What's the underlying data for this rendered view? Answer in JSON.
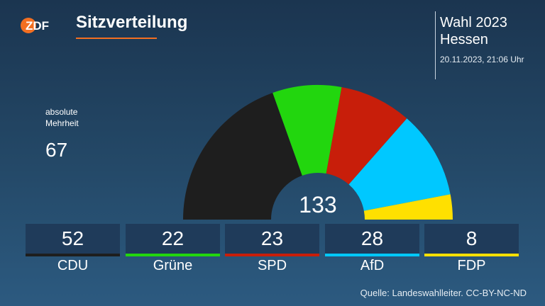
{
  "header": {
    "title": "Sitzverteilung",
    "election_line1": "Wahl 2023",
    "election_line2": "Hessen",
    "timestamp": "20.11.2023, 21:06 Uhr"
  },
  "majority": {
    "label_line1": "absolute",
    "label_line2": "Mehrheit",
    "value": "67"
  },
  "chart_data": {
    "type": "parliament-semicircle",
    "title": "Sitzverteilung",
    "total": 133,
    "parties": [
      {
        "name": "CDU",
        "seats": 52,
        "color": "#1e1e1e"
      },
      {
        "name": "Grüne",
        "seats": 22,
        "color": "#22d60e"
      },
      {
        "name": "SPD",
        "seats": 23,
        "color": "#c81e0a"
      },
      {
        "name": "AfD",
        "seats": 28,
        "color": "#00c8ff"
      },
      {
        "name": "FDP",
        "seats": 8,
        "color": "#ffe000"
      }
    ]
  },
  "labels": {
    "total": "133",
    "cdu_seats": "52",
    "cdu_name": "CDU",
    "gruene_seats": "22",
    "gruene_name": "Grüne",
    "spd_seats": "23",
    "spd_name": "SPD",
    "afd_seats": "28",
    "afd_name": "AfD",
    "fdp_seats": "8",
    "fdp_name": "FDP"
  },
  "footer": {
    "source": "Quelle: Landeswahlleiter. CC-BY-NC-ND"
  },
  "colors": {
    "accent": "#f36f21",
    "box": "#1f3b5a"
  }
}
